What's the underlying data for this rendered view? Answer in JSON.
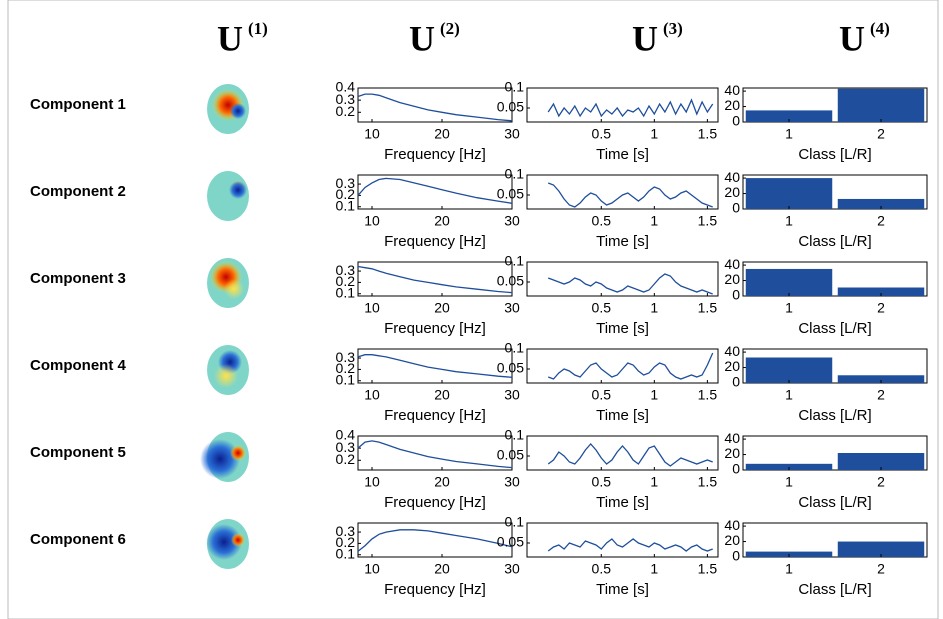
{
  "columns": [
    {
      "base": "U",
      "sup": "(1)"
    },
    {
      "base": "U",
      "sup": "(2)"
    },
    {
      "base": "U",
      "sup": "(3)"
    },
    {
      "base": "U",
      "sup": "(4)"
    }
  ],
  "rows": [
    "Component 1",
    "Component 2",
    "Component 3",
    "Component 4",
    "Component 5",
    "Component 6"
  ],
  "chart_data": [
    {
      "type": "line",
      "color": "#1f4e9c",
      "xlabel": "Frequency [Hz]",
      "xlim": [
        8,
        30
      ],
      "ylim": [
        0.12,
        0.4
      ],
      "xticks": [
        10,
        20,
        30
      ],
      "yticks": [
        0.2,
        0.3,
        0.4
      ],
      "x": [
        8,
        9,
        10,
        11,
        12,
        14,
        16,
        18,
        20,
        22,
        25,
        28,
        30
      ],
      "values": [
        0.33,
        0.35,
        0.35,
        0.34,
        0.32,
        0.28,
        0.25,
        0.22,
        0.2,
        0.18,
        0.16,
        0.14,
        0.13
      ]
    },
    {
      "type": "line",
      "color": "#1f4e9c",
      "xlabel": "Time [s]",
      "xlim": [
        -0.2,
        1.6
      ],
      "ylim": [
        0.015,
        0.1
      ],
      "xticks": [
        0.5,
        1,
        1.5
      ],
      "yticks": [
        0.05,
        0.1
      ],
      "x": [
        0,
        0.05,
        0.1,
        0.15,
        0.2,
        0.25,
        0.3,
        0.35,
        0.4,
        0.45,
        0.5,
        0.55,
        0.6,
        0.65,
        0.7,
        0.75,
        0.8,
        0.85,
        0.9,
        0.95,
        1,
        1.05,
        1.1,
        1.15,
        1.2,
        1.25,
        1.3,
        1.35,
        1.4,
        1.45,
        1.5,
        1.55
      ],
      "values": [
        0.04,
        0.06,
        0.03,
        0.05,
        0.035,
        0.055,
        0.03,
        0.05,
        0.04,
        0.06,
        0.03,
        0.045,
        0.035,
        0.05,
        0.03,
        0.045,
        0.04,
        0.05,
        0.03,
        0.055,
        0.035,
        0.06,
        0.04,
        0.065,
        0.035,
        0.06,
        0.04,
        0.07,
        0.035,
        0.065,
        0.04,
        0.06
      ]
    },
    {
      "type": "bar",
      "color": "#1f4e9c",
      "xlabel": "Class [L/R]",
      "categories": [
        "1",
        "2"
      ],
      "values": [
        15,
        43
      ],
      "ylim": [
        0,
        44
      ],
      "yticks": [
        0,
        20,
        40
      ]
    },
    {
      "type": "line",
      "color": "#1f4e9c",
      "xlabel": "Frequency [Hz]",
      "xlim": [
        8,
        30
      ],
      "ylim": [
        0.08,
        0.38
      ],
      "xticks": [
        10,
        20,
        30
      ],
      "yticks": [
        0.1,
        0.2,
        0.3
      ],
      "x": [
        8,
        9,
        10,
        11,
        12,
        14,
        16,
        18,
        20,
        22,
        25,
        28,
        30
      ],
      "values": [
        0.2,
        0.27,
        0.31,
        0.34,
        0.35,
        0.34,
        0.31,
        0.28,
        0.25,
        0.22,
        0.18,
        0.15,
        0.13
      ]
    },
    {
      "type": "line",
      "color": "#1f4e9c",
      "xlabel": "Time [s]",
      "xlim": [
        -0.2,
        1.6
      ],
      "ylim": [
        0.015,
        0.1
      ],
      "xticks": [
        0.5,
        1,
        1.5
      ],
      "yticks": [
        0.05,
        0.1
      ],
      "x": [
        0,
        0.05,
        0.1,
        0.15,
        0.2,
        0.25,
        0.3,
        0.35,
        0.4,
        0.45,
        0.5,
        0.55,
        0.6,
        0.65,
        0.7,
        0.75,
        0.8,
        0.85,
        0.9,
        0.95,
        1,
        1.05,
        1.1,
        1.15,
        1.2,
        1.25,
        1.3,
        1.35,
        1.4,
        1.45,
        1.5,
        1.55
      ],
      "values": [
        0.08,
        0.075,
        0.06,
        0.04,
        0.025,
        0.02,
        0.03,
        0.045,
        0.055,
        0.05,
        0.035,
        0.025,
        0.03,
        0.04,
        0.05,
        0.055,
        0.045,
        0.035,
        0.045,
        0.06,
        0.07,
        0.065,
        0.05,
        0.04,
        0.045,
        0.055,
        0.06,
        0.05,
        0.04,
        0.03,
        0.025,
        0.02
      ]
    },
    {
      "type": "bar",
      "color": "#1f4e9c",
      "xlabel": "Class [L/R]",
      "categories": [
        "1",
        "2"
      ],
      "values": [
        40,
        13
      ],
      "ylim": [
        0,
        44
      ],
      "yticks": [
        0,
        20,
        40
      ]
    },
    {
      "type": "line",
      "color": "#1f4e9c",
      "xlabel": "Frequency [Hz]",
      "xlim": [
        8,
        30
      ],
      "ylim": [
        0.08,
        0.38
      ],
      "xticks": [
        10,
        20,
        30
      ],
      "yticks": [
        0.1,
        0.2,
        0.3
      ],
      "x": [
        8,
        9,
        10,
        11,
        12,
        14,
        16,
        18,
        20,
        22,
        25,
        28,
        30
      ],
      "values": [
        0.34,
        0.33,
        0.32,
        0.3,
        0.28,
        0.25,
        0.22,
        0.2,
        0.18,
        0.16,
        0.14,
        0.12,
        0.11
      ]
    },
    {
      "type": "line",
      "color": "#1f4e9c",
      "xlabel": "Time [s]",
      "xlim": [
        -0.2,
        1.6
      ],
      "ylim": [
        0.015,
        0.1
      ],
      "xticks": [
        0.5,
        1,
        1.5
      ],
      "yticks": [
        0.05,
        0.1
      ],
      "x": [
        0,
        0.05,
        0.1,
        0.15,
        0.2,
        0.25,
        0.3,
        0.35,
        0.4,
        0.45,
        0.5,
        0.55,
        0.6,
        0.65,
        0.7,
        0.75,
        0.8,
        0.85,
        0.9,
        0.95,
        1,
        1.05,
        1.1,
        1.15,
        1.2,
        1.25,
        1.3,
        1.35,
        1.4,
        1.45,
        1.5,
        1.55
      ],
      "values": [
        0.06,
        0.055,
        0.05,
        0.045,
        0.05,
        0.06,
        0.055,
        0.045,
        0.04,
        0.05,
        0.045,
        0.035,
        0.03,
        0.025,
        0.03,
        0.04,
        0.035,
        0.03,
        0.025,
        0.03,
        0.045,
        0.06,
        0.07,
        0.065,
        0.05,
        0.04,
        0.035,
        0.03,
        0.025,
        0.03,
        0.025,
        0.02
      ]
    },
    {
      "type": "bar",
      "color": "#1f4e9c",
      "xlabel": "Class [L/R]",
      "categories": [
        "1",
        "2"
      ],
      "values": [
        35,
        11
      ],
      "ylim": [
        0,
        44
      ],
      "yticks": [
        0,
        20,
        40
      ]
    },
    {
      "type": "line",
      "color": "#1f4e9c",
      "xlabel": "Frequency [Hz]",
      "xlim": [
        8,
        30
      ],
      "ylim": [
        0.08,
        0.38
      ],
      "xticks": [
        10,
        20,
        30
      ],
      "yticks": [
        0.1,
        0.2,
        0.3
      ],
      "x": [
        8,
        9,
        10,
        11,
        12,
        14,
        16,
        18,
        20,
        22,
        25,
        28,
        30
      ],
      "values": [
        0.31,
        0.33,
        0.33,
        0.32,
        0.31,
        0.28,
        0.25,
        0.22,
        0.2,
        0.18,
        0.16,
        0.14,
        0.13
      ]
    },
    {
      "type": "line",
      "color": "#1f4e9c",
      "xlabel": "Time [s]",
      "xlim": [
        -0.2,
        1.6
      ],
      "ylim": [
        0.015,
        0.1
      ],
      "xticks": [
        0.5,
        1,
        1.5
      ],
      "yticks": [
        0.05,
        0.1
      ],
      "x": [
        0,
        0.05,
        0.1,
        0.15,
        0.2,
        0.25,
        0.3,
        0.35,
        0.4,
        0.45,
        0.5,
        0.55,
        0.6,
        0.65,
        0.7,
        0.75,
        0.8,
        0.85,
        0.9,
        0.95,
        1,
        1.05,
        1.1,
        1.15,
        1.2,
        1.25,
        1.3,
        1.35,
        1.4,
        1.45,
        1.5,
        1.55
      ],
      "values": [
        0.03,
        0.025,
        0.04,
        0.05,
        0.045,
        0.035,
        0.03,
        0.045,
        0.06,
        0.065,
        0.05,
        0.04,
        0.03,
        0.035,
        0.05,
        0.065,
        0.06,
        0.045,
        0.035,
        0.04,
        0.055,
        0.065,
        0.06,
        0.04,
        0.03,
        0.025,
        0.03,
        0.035,
        0.03,
        0.035,
        0.06,
        0.09
      ]
    },
    {
      "type": "bar",
      "color": "#1f4e9c",
      "xlabel": "Class [L/R]",
      "categories": [
        "1",
        "2"
      ],
      "values": [
        33,
        10
      ],
      "ylim": [
        0,
        44
      ],
      "yticks": [
        0,
        20,
        40
      ]
    },
    {
      "type": "line",
      "color": "#1f4e9c",
      "xlabel": "Frequency [Hz]",
      "xlim": [
        8,
        30
      ],
      "ylim": [
        0.12,
        0.4
      ],
      "xticks": [
        10,
        20,
        30
      ],
      "yticks": [
        0.2,
        0.3,
        0.4
      ],
      "x": [
        8,
        9,
        10,
        11,
        12,
        14,
        16,
        18,
        20,
        22,
        25,
        28,
        30
      ],
      "values": [
        0.3,
        0.35,
        0.36,
        0.35,
        0.33,
        0.29,
        0.26,
        0.23,
        0.21,
        0.19,
        0.17,
        0.15,
        0.14
      ]
    },
    {
      "type": "line",
      "color": "#1f4e9c",
      "xlabel": "Time [s]",
      "xlim": [
        -0.2,
        1.6
      ],
      "ylim": [
        0.015,
        0.1
      ],
      "xticks": [
        0.5,
        1,
        1.5
      ],
      "yticks": [
        0.05,
        0.1
      ],
      "x": [
        0,
        0.05,
        0.1,
        0.15,
        0.2,
        0.25,
        0.3,
        0.35,
        0.4,
        0.45,
        0.5,
        0.55,
        0.6,
        0.65,
        0.7,
        0.75,
        0.8,
        0.85,
        0.9,
        0.95,
        1,
        1.05,
        1.1,
        1.15,
        1.2,
        1.25,
        1.3,
        1.35,
        1.4,
        1.45,
        1.5,
        1.55
      ],
      "values": [
        0.03,
        0.04,
        0.06,
        0.05,
        0.035,
        0.03,
        0.045,
        0.065,
        0.08,
        0.065,
        0.045,
        0.03,
        0.04,
        0.06,
        0.075,
        0.06,
        0.04,
        0.03,
        0.05,
        0.07,
        0.075,
        0.055,
        0.035,
        0.025,
        0.035,
        0.045,
        0.04,
        0.035,
        0.03,
        0.035,
        0.04,
        0.035
      ]
    },
    {
      "type": "bar",
      "color": "#1f4e9c",
      "xlabel": "Class [L/R]",
      "categories": [
        "1",
        "2"
      ],
      "values": [
        8,
        22
      ],
      "ylim": [
        0,
        44
      ],
      "yticks": [
        0,
        20,
        40
      ]
    },
    {
      "type": "line",
      "color": "#1f4e9c",
      "xlabel": "Frequency [Hz]",
      "xlim": [
        8,
        30
      ],
      "ylim": [
        0.08,
        0.38
      ],
      "xticks": [
        10,
        20,
        30
      ],
      "yticks": [
        0.1,
        0.2,
        0.3
      ],
      "x": [
        8,
        9,
        10,
        11,
        12,
        14,
        16,
        18,
        20,
        22,
        25,
        28,
        30
      ],
      "values": [
        0.13,
        0.18,
        0.24,
        0.28,
        0.3,
        0.32,
        0.32,
        0.31,
        0.29,
        0.27,
        0.24,
        0.2,
        0.17
      ]
    },
    {
      "type": "line",
      "color": "#1f4e9c",
      "xlabel": "Time [s]",
      "xlim": [
        -0.2,
        1.6
      ],
      "ylim": [
        0.015,
        0.1
      ],
      "xticks": [
        0.5,
        1,
        1.5
      ],
      "yticks": [
        0.05,
        0.1
      ],
      "x": [
        0,
        0.05,
        0.1,
        0.15,
        0.2,
        0.25,
        0.3,
        0.35,
        0.4,
        0.45,
        0.5,
        0.55,
        0.6,
        0.65,
        0.7,
        0.75,
        0.8,
        0.85,
        0.9,
        0.95,
        1,
        1.05,
        1.1,
        1.15,
        1.2,
        1.25,
        1.3,
        1.35,
        1.4,
        1.45,
        1.5,
        1.55
      ],
      "values": [
        0.03,
        0.04,
        0.045,
        0.035,
        0.05,
        0.045,
        0.04,
        0.055,
        0.05,
        0.045,
        0.035,
        0.05,
        0.06,
        0.045,
        0.04,
        0.05,
        0.06,
        0.05,
        0.045,
        0.04,
        0.05,
        0.045,
        0.035,
        0.04,
        0.045,
        0.04,
        0.03,
        0.04,
        0.045,
        0.035,
        0.03,
        0.035
      ]
    },
    {
      "type": "bar",
      "color": "#1f4e9c",
      "xlabel": "Class [L/R]",
      "categories": [
        "1",
        "2"
      ],
      "values": [
        7,
        20
      ],
      "ylim": [
        0,
        44
      ],
      "yticks": [
        0,
        20,
        40
      ]
    }
  ]
}
